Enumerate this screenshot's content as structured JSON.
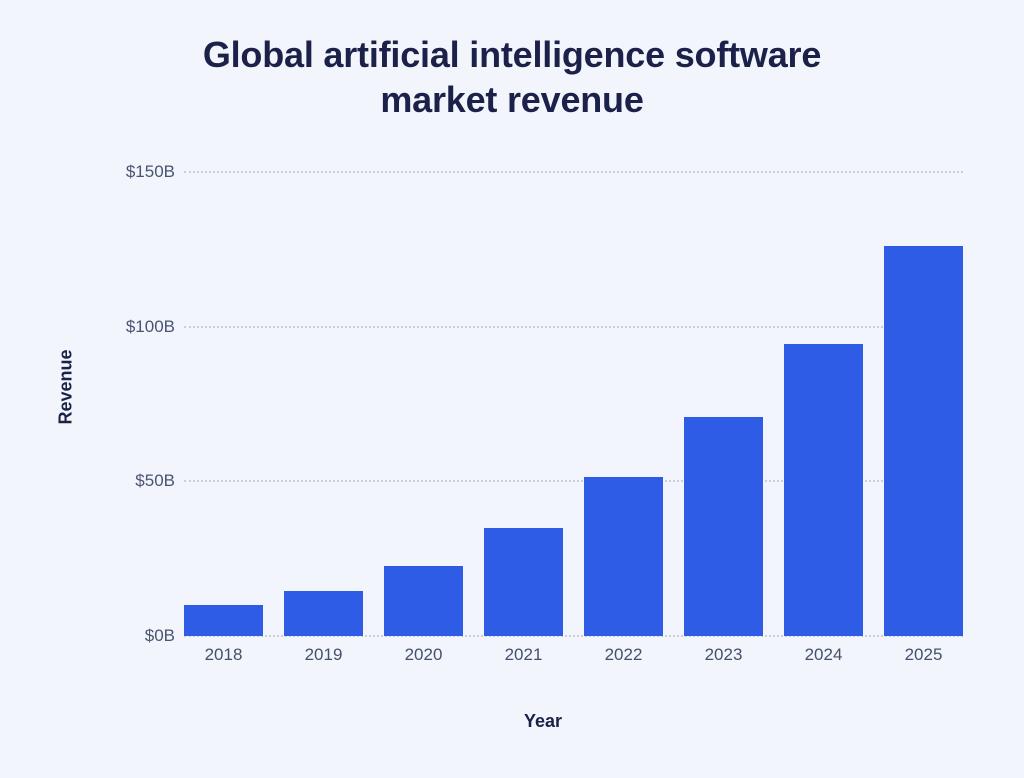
{
  "chart_data": {
    "type": "bar",
    "title": "Global artificial intelligence software market revenue",
    "title_lines": [
      "Global artificial intelligence software",
      "market revenue"
    ],
    "xlabel": "Year",
    "ylabel": "Revenue",
    "categories": [
      "2018",
      "2019",
      "2020",
      "2021",
      "2022",
      "2023",
      "2024",
      "2025"
    ],
    "values": [
      10.1,
      14.69,
      22.59,
      34.87,
      51.27,
      70.94,
      94.41,
      126.0
    ],
    "ylim": [
      0,
      150
    ],
    "y_ticks": [
      {
        "value": 0,
        "label": "$0B"
      },
      {
        "value": 50,
        "label": "$50B"
      },
      {
        "value": 100,
        "label": "$100B"
      },
      {
        "value": 150,
        "label": "$150B"
      }
    ],
    "grid": "horizontal-dotted",
    "legend": "none",
    "bar_color": "#2F5CE4"
  },
  "colors": {
    "background": "#F2F5FC",
    "bar": "#2F5CE4",
    "title_text": "#1B2148",
    "tick_text": "#45506B",
    "axis_title_text": "#1B2148",
    "gridline": "#C9CEDA"
  }
}
